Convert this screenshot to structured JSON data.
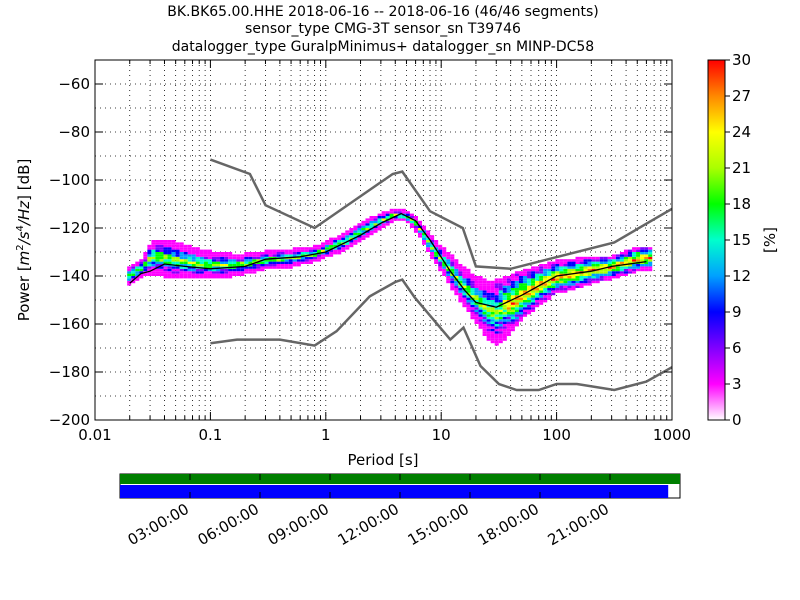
{
  "chart_data": {
    "type": "heatmap",
    "title": [
      "BK.BK65.00.HHE   2018-06-16 -- 2018-06-16  (46/46 segments)",
      "sensor_type CMG-3T sensor_sn T39746",
      "datalogger_type GuralpMinimus+ datalogger_sn MINP-DC58"
    ],
    "xlabel": "Period [s]",
    "ylabel_parts": [
      "Power [",
      "m",
      "2",
      "/",
      "s",
      "4",
      "/",
      "Hz",
      "] [dB]"
    ],
    "xscale": "log",
    "xlim": [
      0.01,
      1000
    ],
    "ylim": [
      -200,
      -50
    ],
    "x_ticks": [
      {
        "value": 0.01,
        "label": "0.01"
      },
      {
        "value": 0.1,
        "label": "0.1"
      },
      {
        "value": 1,
        "label": "1"
      },
      {
        "value": 10,
        "label": "10"
      },
      {
        "value": 100,
        "label": "100"
      },
      {
        "value": 1000,
        "label": "1000"
      }
    ],
    "y_ticks": [
      {
        "value": -60,
        "label": "−60"
      },
      {
        "value": -80,
        "label": "−80"
      },
      {
        "value": -100,
        "label": "−100"
      },
      {
        "value": -120,
        "label": "−120"
      },
      {
        "value": -140,
        "label": "−140"
      },
      {
        "value": -160,
        "label": "−160"
      },
      {
        "value": -180,
        "label": "−180"
      },
      {
        "value": -200,
        "label": "−200"
      }
    ],
    "grid": true,
    "colorbar": {
      "label": "[%]",
      "range": [
        0,
        30
      ],
      "ticks": [
        {
          "value": 0,
          "label": "0"
        },
        {
          "value": 3,
          "label": "3"
        },
        {
          "value": 6,
          "label": "6"
        },
        {
          "value": 9,
          "label": "9"
        },
        {
          "value": 12,
          "label": "12"
        },
        {
          "value": 15,
          "label": "15"
        },
        {
          "value": 18,
          "label": "18"
        },
        {
          "value": 21,
          "label": "21"
        },
        {
          "value": 24,
          "label": "24"
        },
        {
          "value": 27,
          "label": "27"
        },
        {
          "value": 30,
          "label": "30"
        }
      ],
      "colors": [
        "#ffffff",
        "#ff00ff",
        "#8000ff",
        "#0000ff",
        "#00a0ff",
        "#00ffcc",
        "#00ff00",
        "#aaff00",
        "#ffff00",
        "#ff8800",
        "#ff0000"
      ]
    },
    "series": [
      {
        "name": "",
        "color": "#666666",
        "points": [
          [
            0.1,
            -91.5
          ],
          [
            0.22,
            -97.5
          ],
          [
            0.3,
            -110.5
          ],
          [
            0.8,
            -120
          ],
          [
            3.8,
            -97.5
          ],
          [
            4.6,
            -96.5
          ],
          [
            8,
            -113
          ],
          [
            15.4,
            -120
          ],
          [
            20,
            -136
          ],
          [
            40,
            -137
          ],
          [
            316,
            -126
          ],
          [
            1000,
            -112
          ]
        ]
      },
      {
        "name": "",
        "color": "#666666",
        "points": [
          [
            0.1,
            -168
          ],
          [
            0.17,
            -166.5
          ],
          [
            0.4,
            -166.5
          ],
          [
            0.8,
            -169
          ],
          [
            1.24,
            -163
          ],
          [
            2.4,
            -148.5
          ],
          [
            4,
            -142.5
          ],
          [
            4.6,
            -141.5
          ],
          [
            5.9,
            -149
          ],
          [
            10,
            -162
          ],
          [
            12,
            -166.5
          ],
          [
            15.6,
            -161.5
          ],
          [
            21.9,
            -177.5
          ],
          [
            31.6,
            -185
          ],
          [
            45,
            -187.5
          ],
          [
            70,
            -187.5
          ],
          [
            100,
            -185
          ],
          [
            150,
            -185
          ],
          [
            316,
            -187.5
          ],
          [
            600,
            -184
          ],
          [
            1000,
            -178
          ]
        ]
      },
      {
        "name": "",
        "color": "#000000",
        "points": [
          [
            0.02,
            -143
          ],
          [
            0.025,
            -139
          ],
          [
            0.03,
            -138
          ],
          [
            0.04,
            -135
          ],
          [
            0.06,
            -136
          ],
          [
            0.1,
            -137
          ],
          [
            0.2,
            -136
          ],
          [
            0.3,
            -133
          ],
          [
            0.6,
            -132
          ],
          [
            1,
            -130
          ],
          [
            2,
            -123
          ],
          [
            3,
            -118
          ],
          [
            4.5,
            -114
          ],
          [
            6,
            -117
          ],
          [
            8,
            -125
          ],
          [
            12,
            -138
          ],
          [
            16,
            -146
          ],
          [
            20,
            -151
          ],
          [
            30,
            -153
          ],
          [
            50,
            -148
          ],
          [
            100,
            -140
          ],
          [
            200,
            -138
          ],
          [
            300,
            -136
          ],
          [
            600,
            -134
          ]
        ]
      }
    ],
    "heatmap_band": [
      [
        0.019,
        -144,
        -137
      ],
      [
        0.022,
        -142,
        -135
      ],
      [
        0.026,
        -140,
        -133
      ],
      [
        0.031,
        -139,
        -125
      ],
      [
        0.04,
        -140,
        -125
      ],
      [
        0.05,
        -141,
        -126
      ],
      [
        0.07,
        -141,
        -128
      ],
      [
        0.1,
        -141,
        -130
      ],
      [
        0.15,
        -140,
        -131
      ],
      [
        0.2,
        -139,
        -131
      ],
      [
        0.3,
        -137,
        -130
      ],
      [
        0.5,
        -136,
        -129
      ],
      [
        0.8,
        -134,
        -128
      ],
      [
        1,
        -132,
        -126
      ],
      [
        1.5,
        -129,
        -122
      ],
      [
        2,
        -125,
        -118
      ],
      [
        3,
        -120,
        -114
      ],
      [
        4,
        -117,
        -112
      ],
      [
        5,
        -117,
        -113
      ],
      [
        6,
        -121,
        -115
      ],
      [
        7,
        -126,
        -119
      ],
      [
        8,
        -131,
        -123
      ],
      [
        10,
        -138,
        -128
      ],
      [
        12,
        -144,
        -131
      ],
      [
        15,
        -151,
        -136
      ],
      [
        20,
        -159,
        -140
      ],
      [
        25,
        -166,
        -142
      ],
      [
        30,
        -169,
        -142
      ],
      [
        40,
        -164,
        -140
      ],
      [
        50,
        -158,
        -138
      ],
      [
        70,
        -152,
        -136
      ],
      [
        100,
        -147,
        -134
      ],
      [
        150,
        -145,
        -133
      ],
      [
        200,
        -143,
        -132
      ],
      [
        300,
        -141,
        -132
      ],
      [
        500,
        -138,
        -128
      ],
      [
        650,
        -137,
        -128
      ]
    ]
  },
  "timeline": {
    "tick_labels": [
      "03:00:00",
      "06:00:00",
      "09:00:00",
      "12:00:00",
      "15:00:00",
      "18:00:00",
      "21:00:00"
    ],
    "tick_hours": [
      3,
      6,
      9,
      12,
      15,
      18,
      21
    ],
    "top_bar_color": "#007f00",
    "bottom_bar_color": "#0000ff",
    "bottom_bar_fraction": 0.979
  }
}
